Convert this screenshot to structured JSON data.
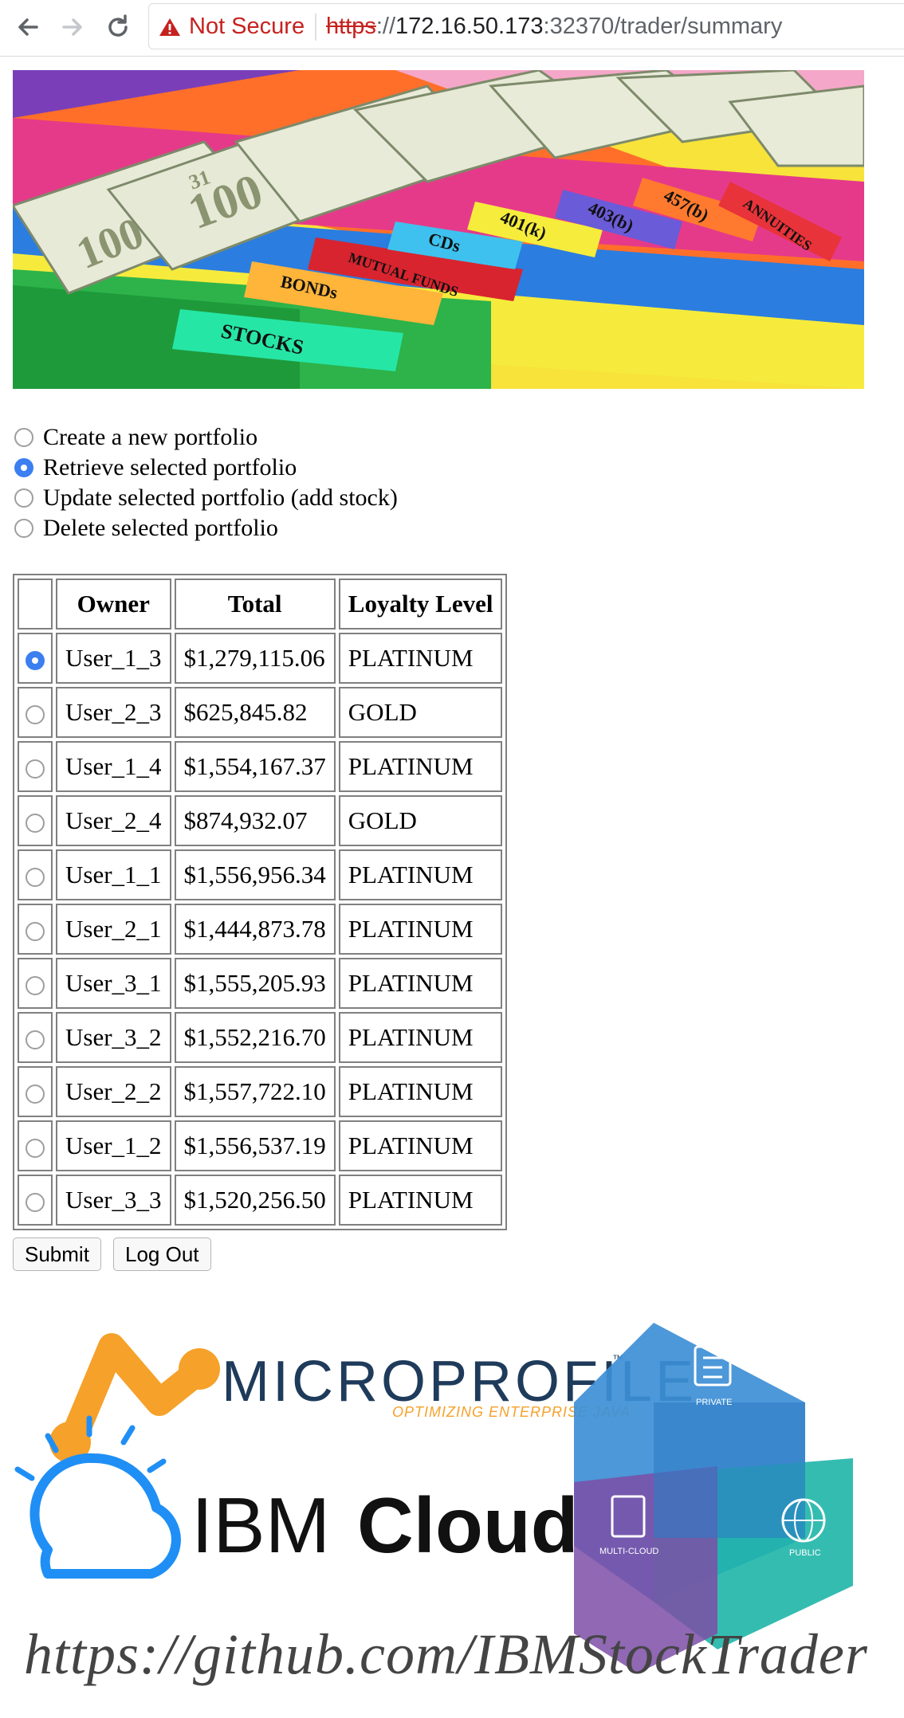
{
  "browser": {
    "security_label": "Not Secure",
    "url_scheme": "https",
    "url_separator": "://",
    "url_host": "172.16.50.173",
    "url_rest": ":32370/trader/summary"
  },
  "actions": [
    {
      "label": "Create a new portfolio",
      "checked": false
    },
    {
      "label": "Retrieve selected portfolio",
      "checked": true
    },
    {
      "label": "Update selected portfolio (add stock)",
      "checked": false
    },
    {
      "label": "Delete selected portfolio",
      "checked": false
    }
  ],
  "table": {
    "headers": [
      "",
      "Owner",
      "Total",
      "Loyalty Level"
    ],
    "rows": [
      {
        "owner": "User_1_3",
        "total": "$1,279,115.06",
        "loyalty": "PLATINUM",
        "selected": true
      },
      {
        "owner": "User_2_3",
        "total": "$625,845.82",
        "loyalty": "GOLD",
        "selected": false
      },
      {
        "owner": "User_1_4",
        "total": "$1,554,167.37",
        "loyalty": "PLATINUM",
        "selected": false
      },
      {
        "owner": "User_2_4",
        "total": "$874,932.07",
        "loyalty": "GOLD",
        "selected": false
      },
      {
        "owner": "User_1_1",
        "total": "$1,556,956.34",
        "loyalty": "PLATINUM",
        "selected": false
      },
      {
        "owner": "User_2_1",
        "total": "$1,444,873.78",
        "loyalty": "PLATINUM",
        "selected": false
      },
      {
        "owner": "User_3_1",
        "total": "$1,555,205.93",
        "loyalty": "PLATINUM",
        "selected": false
      },
      {
        "owner": "User_3_2",
        "total": "$1,552,216.70",
        "loyalty": "PLATINUM",
        "selected": false
      },
      {
        "owner": "User_2_2",
        "total": "$1,557,722.10",
        "loyalty": "PLATINUM",
        "selected": false
      },
      {
        "owner": "User_1_2",
        "total": "$1,556,537.19",
        "loyalty": "PLATINUM",
        "selected": false
      },
      {
        "owner": "User_3_3",
        "total": "$1,520,256.50",
        "loyalty": "PLATINUM",
        "selected": false
      }
    ]
  },
  "buttons": {
    "submit": "Submit",
    "logout": "Log Out"
  },
  "banner": {
    "tabs": [
      "STOCKS",
      "BONDs",
      "MUTUAL FUNDS",
      "CDs",
      "401(k)",
      "403(b)",
      "457(b)",
      "ANNUITIES"
    ],
    "bill_numbers": [
      "100",
      "100",
      "31"
    ]
  },
  "logos": {
    "microprofile_name": "MICROPROFILE",
    "microprofile_tm": "™",
    "microprofile_tagline": "OPTIMIZING ENTERPRISE JAVA",
    "ibm_cloud_a": "IBM",
    "ibm_cloud_b": "Cloud",
    "cube_private": "PRIVATE",
    "cube_multicloud": "MULTI-CLOUD",
    "cube_public": "PUBLIC",
    "github_url": "https://github.com/IBMStockTrader"
  },
  "colors": {
    "accent": "#3b7ff0",
    "warning": "#c5221f",
    "microprofile_orange": "#f6a12a",
    "microprofile_navy": "#1f3b5b",
    "cube_blue": "#3d8fd6",
    "cube_purple": "#7c4ea6",
    "cube_teal": "#1fb5a8"
  }
}
